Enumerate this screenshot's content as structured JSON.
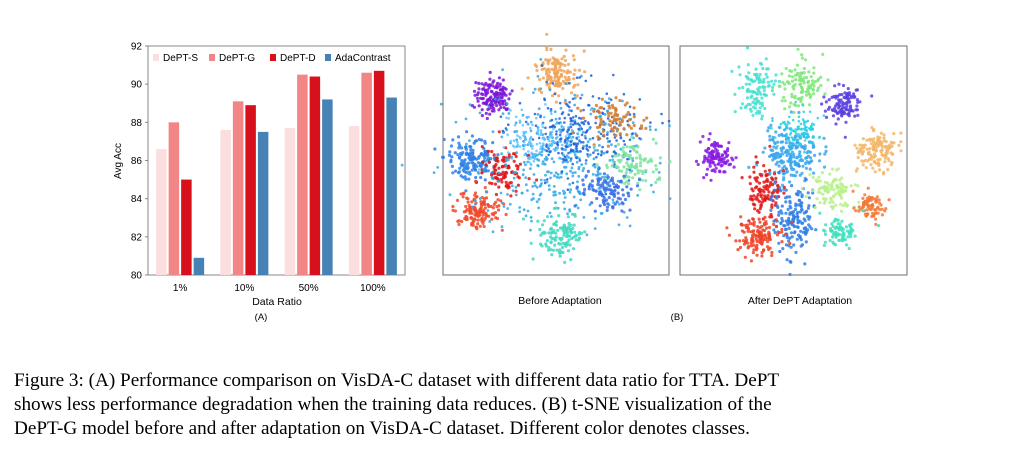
{
  "colors": {
    "DePT-S": "#fbdede",
    "DePT-G": "#f28585",
    "DePT-D": "#d8101b",
    "AdaContrast": "#4682b4",
    "plot_border": "#6e6e6e"
  },
  "chart_data": [
    {
      "type": "bar",
      "categories": [
        "1%",
        "10%",
        "50%",
        "100%"
      ],
      "series": [
        {
          "name": "DePT-S",
          "values": [
            86.6,
            87.6,
            87.7,
            87.8
          ]
        },
        {
          "name": "DePT-G",
          "values": [
            88.0,
            89.1,
            90.5,
            90.6
          ]
        },
        {
          "name": "DePT-D",
          "values": [
            85.0,
            88.9,
            90.4,
            90.7
          ]
        },
        {
          "name": "AdaContrast",
          "values": [
            80.9,
            87.5,
            89.2,
            89.3
          ]
        }
      ],
      "xlabel": "Data Ratio",
      "ylabel": "Avg Acc",
      "ylim": [
        80,
        92
      ],
      "yticks": [
        "80",
        "82",
        "84",
        "86",
        "88",
        "90",
        "92"
      ],
      "legend_position": "top",
      "panel_label": "(A)"
    },
    {
      "type": "scatter",
      "panels": [
        {
          "label": "Before Adaptation"
        },
        {
          "label": "After DePT Adaptation"
        }
      ],
      "panel_label": "(B)",
      "note": "t-SNE embeddings colored by class"
    }
  ],
  "caption": {
    "lines": [
      "Figure 3: (A) Performance comparison on VisDA-C dataset with different data ratio for TTA. DePT",
      "shows less performance degradation when the training data reduces. (B) t-SNE visualization of the",
      "DePT-G model before and after adaptation on VisDA-C dataset. Different color denotes classes."
    ]
  }
}
